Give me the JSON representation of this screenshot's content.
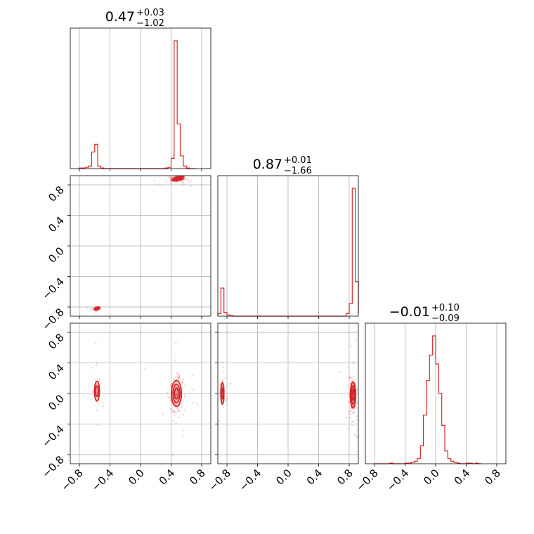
{
  "chart_data": {
    "type": "corner",
    "color": "#d62728",
    "axis_range": [
      -0.92,
      0.92
    ],
    "ticks": [
      -0.8,
      -0.4,
      0.0,
      0.4,
      0.8
    ],
    "tick_labels": [
      "−0.8",
      "−0.4",
      "0.0",
      "0.4",
      "0.8"
    ],
    "grid": true,
    "parameters": [
      {
        "title_main": "0.47",
        "title_sup": "+0.03",
        "title_sub": "−1.02"
      },
      {
        "title_main": "0.87",
        "title_sup": "+0.01",
        "title_sub": "−1.66"
      },
      {
        "title_main": "−0.01",
        "title_sup": "+0.10",
        "title_sub": "−0.09"
      }
    ],
    "histograms": [
      {
        "parameter": 0,
        "bin_edges": [
          -0.8,
          -0.76,
          -0.72,
          -0.68,
          -0.64,
          -0.6,
          -0.56,
          -0.52,
          -0.48,
          -0.44,
          -0.4,
          -0.36,
          -0.32,
          -0.28,
          -0.24,
          -0.2,
          -0.16,
          -0.12,
          -0.08,
          -0.04,
          0.0,
          0.04,
          0.08,
          0.12,
          0.16,
          0.2,
          0.24,
          0.28,
          0.32,
          0.36,
          0.4,
          0.44,
          0.48,
          0.52,
          0.56,
          0.6,
          0.64,
          0.68,
          0.72
        ],
        "counts": [
          0.005,
          0.005,
          0.01,
          0.02,
          0.13,
          0.19,
          0.02,
          0.005,
          0.0,
          0.0,
          0.0,
          0.0,
          0.0,
          0.0,
          0.0,
          0.0,
          0.0,
          0.0,
          0.0,
          0.0,
          0.0,
          0.0,
          0.0,
          0.0,
          0.0,
          0.0,
          0.0,
          0.0,
          0.005,
          0.01,
          0.08,
          1.0,
          0.35,
          0.1,
          0.02,
          0.005,
          0.0,
          0.0
        ]
      },
      {
        "parameter": 1,
        "bin_edges": [
          -0.92,
          -0.88,
          -0.84,
          -0.8,
          -0.76,
          -0.72,
          -0.68,
          -0.64,
          -0.6,
          -0.56,
          -0.52,
          -0.48,
          -0.44,
          -0.4,
          -0.36,
          -0.32,
          -0.28,
          -0.24,
          -0.2,
          -0.16,
          -0.12,
          -0.08,
          -0.04,
          0.0,
          0.04,
          0.08,
          0.12,
          0.16,
          0.2,
          0.24,
          0.28,
          0.32,
          0.36,
          0.4,
          0.44,
          0.48,
          0.52,
          0.56,
          0.6,
          0.64,
          0.68,
          0.72,
          0.76,
          0.8,
          0.84,
          0.88,
          0.92
        ],
        "counts": [
          0.02,
          0.22,
          0.03,
          0.01,
          0.005,
          0.0,
          0.0,
          0.0,
          0.0,
          0.0,
          0.0,
          0.0,
          0.0,
          0.0,
          0.0,
          0.0,
          0.0,
          0.0,
          0.0,
          0.0,
          0.0,
          0.0,
          0.0,
          0.0,
          0.0,
          0.0,
          0.0,
          0.0,
          0.0,
          0.0,
          0.0,
          0.0,
          0.0,
          0.0,
          0.0,
          0.0,
          0.0,
          0.0,
          0.0,
          0.0,
          0.0,
          0.0,
          0.02,
          0.1,
          1.0,
          0.27,
          0.02
        ]
      },
      {
        "parameter": 2,
        "bin_edges": [
          -0.8,
          -0.76,
          -0.72,
          -0.68,
          -0.64,
          -0.6,
          -0.56,
          -0.52,
          -0.48,
          -0.44,
          -0.4,
          -0.36,
          -0.32,
          -0.28,
          -0.24,
          -0.2,
          -0.16,
          -0.12,
          -0.08,
          -0.04,
          0.0,
          0.04,
          0.08,
          0.12,
          0.16,
          0.2,
          0.24,
          0.28,
          0.32,
          0.36,
          0.4,
          0.44,
          0.48,
          0.52,
          0.56,
          0.6
        ],
        "counts": [
          0.0,
          0.0,
          0.0,
          0.0,
          0.0,
          0.005,
          0.0,
          0.0,
          0.0,
          0.0,
          0.005,
          0.005,
          0.01,
          0.02,
          0.04,
          0.14,
          0.38,
          0.65,
          0.85,
          1.0,
          0.78,
          0.55,
          0.3,
          0.1,
          0.04,
          0.02,
          0.01,
          0.005,
          0.0,
          0.0,
          0.005,
          0.005,
          0.0,
          0.005,
          0.0
        ]
      }
    ],
    "scatter_panels": [
      {
        "x_parameter": 0,
        "y_parameter": 1,
        "clusters": [
          {
            "x": 0.49,
            "y": 0.88,
            "sx": 0.05,
            "sy": 0.018,
            "n": 140
          },
          {
            "x": -0.57,
            "y": -0.82,
            "sx": 0.025,
            "sy": 0.012,
            "n": 35
          }
        ],
        "contours": [
          {
            "x": 0.49,
            "y": 0.88,
            "rx": [
              0.08,
              0.055,
              0.03
            ],
            "ry": [
              0.025,
              0.018,
              0.01
            ],
            "angle_deg": -15
          },
          {
            "x": -0.57,
            "y": -0.82,
            "rx": [
              0.04,
              0.025
            ],
            "ry": [
              0.018,
              0.01
            ],
            "angle_deg": -15
          }
        ]
      },
      {
        "x_parameter": 0,
        "y_parameter": 2,
        "clusters": [
          {
            "x": 0.47,
            "y": -0.02,
            "sx": 0.04,
            "sy": 0.1,
            "n": 170
          },
          {
            "x": -0.57,
            "y": 0.03,
            "sx": 0.025,
            "sy": 0.1,
            "n": 50
          }
        ],
        "contours": [
          {
            "x": 0.47,
            "y": 0.0,
            "rx": [
              0.065,
              0.045,
              0.025
            ],
            "ry": [
              0.17,
              0.12,
              0.07
            ],
            "angle_deg": 0
          },
          {
            "x": -0.57,
            "y": 0.03,
            "rx": [
              0.032,
              0.018
            ],
            "ry": [
              0.13,
              0.07
            ],
            "angle_deg": 0
          }
        ]
      },
      {
        "x_parameter": 1,
        "y_parameter": 2,
        "clusters": [
          {
            "x": 0.85,
            "y": -0.02,
            "sx": 0.02,
            "sy": 0.1,
            "n": 170
          },
          {
            "x": -0.86,
            "y": 0.0,
            "sx": 0.015,
            "sy": 0.1,
            "n": 50
          }
        ],
        "contours": [
          {
            "x": 0.85,
            "y": -0.02,
            "rx": [
              0.035,
              0.022,
              0.012
            ],
            "ry": [
              0.17,
              0.12,
              0.07
            ],
            "angle_deg": 0
          },
          {
            "x": -0.86,
            "y": 0.0,
            "rx": [
              0.02,
              0.01
            ],
            "ry": [
              0.14,
              0.07
            ],
            "angle_deg": 0
          }
        ]
      }
    ]
  }
}
